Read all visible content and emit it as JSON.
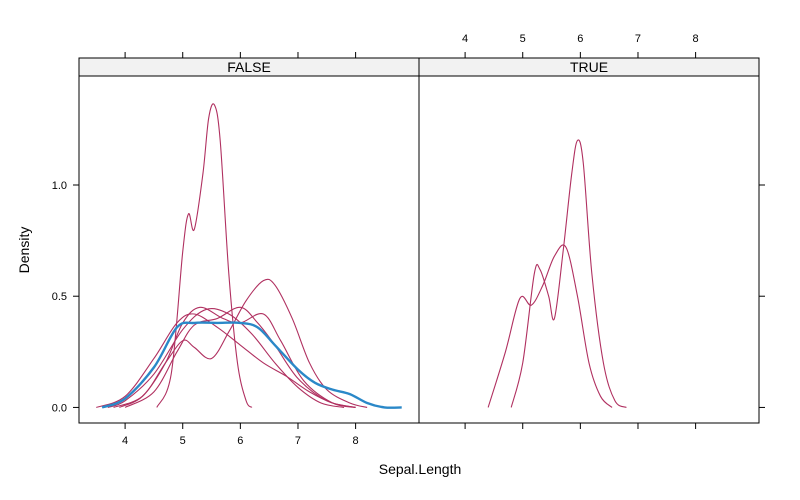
{
  "chart_data": {
    "type": "line",
    "xlabel": "Sepal.Length",
    "ylabel": "Density",
    "xlim": [
      3.2,
      9.1
    ],
    "ylim": [
      -0.07,
      1.49
    ],
    "x_ticks": [
      4,
      5,
      6,
      7,
      8
    ],
    "y_ticks": [
      0.0,
      0.5,
      1.0
    ],
    "y_tick_labels": [
      "0.0",
      "0.5",
      "1.0"
    ],
    "colors": {
      "maroon": "#b03060",
      "blue": "#2a88c8"
    },
    "panels": [
      {
        "strip": "FALSE",
        "series": [
          {
            "color": "maroon",
            "peaks": [
              [
                4.5,
                0.05
              ],
              [
                5.05,
                0.85
              ],
              [
                5.55,
                1.36
              ],
              [
                5.2,
                0.78
              ]
            ],
            "points": [
              [
                4.55,
                0.0
              ],
              [
                4.8,
                0.15
              ],
              [
                5.0,
                0.7
              ],
              [
                5.1,
                0.87
              ],
              [
                5.2,
                0.8
              ],
              [
                5.35,
                1.05
              ],
              [
                5.45,
                1.3
              ],
              [
                5.55,
                1.36
              ],
              [
                5.65,
                1.2
              ],
              [
                5.8,
                0.6
              ],
              [
                5.95,
                0.2
              ],
              [
                6.1,
                0.03
              ],
              [
                6.2,
                0.0
              ]
            ]
          },
          {
            "color": "maroon",
            "points": [
              [
                3.7,
                0.0
              ],
              [
                4.0,
                0.03
              ],
              [
                4.5,
                0.15
              ],
              [
                5.0,
                0.35
              ],
              [
                5.4,
                0.44
              ],
              [
                5.8,
                0.42
              ],
              [
                6.2,
                0.33
              ],
              [
                6.6,
                0.2
              ],
              [
                7.0,
                0.09
              ],
              [
                7.4,
                0.02
              ],
              [
                7.8,
                0.0
              ]
            ]
          },
          {
            "color": "maroon",
            "points": [
              [
                3.5,
                0.0
              ],
              [
                4.0,
                0.05
              ],
              [
                4.5,
                0.22
              ],
              [
                4.9,
                0.38
              ],
              [
                5.2,
                0.42
              ],
              [
                5.6,
                0.36
              ],
              [
                6.0,
                0.28
              ],
              [
                6.4,
                0.2
              ],
              [
                6.8,
                0.14
              ],
              [
                7.2,
                0.07
              ],
              [
                7.6,
                0.02
              ],
              [
                8.0,
                0.0
              ]
            ]
          },
          {
            "color": "maroon",
            "points": [
              [
                3.9,
                0.0
              ],
              [
                4.3,
                0.05
              ],
              [
                4.7,
                0.2
              ],
              [
                5.0,
                0.38
              ],
              [
                5.3,
                0.45
              ],
              [
                5.7,
                0.4
              ],
              [
                6.0,
                0.38
              ],
              [
                6.4,
                0.42
              ],
              [
                6.7,
                0.3
              ],
              [
                7.1,
                0.12
              ],
              [
                7.6,
                0.02
              ],
              [
                8.0,
                0.0
              ]
            ]
          },
          {
            "color": "maroon",
            "points": [
              [
                3.8,
                0.0
              ],
              [
                4.3,
                0.05
              ],
              [
                4.7,
                0.2
              ],
              [
                5.0,
                0.3
              ],
              [
                5.2,
                0.27
              ],
              [
                5.5,
                0.22
              ],
              [
                5.8,
                0.34
              ],
              [
                6.1,
                0.48
              ],
              [
                6.4,
                0.57
              ],
              [
                6.6,
                0.55
              ],
              [
                6.9,
                0.4
              ],
              [
                7.2,
                0.2
              ],
              [
                7.5,
                0.08
              ],
              [
                7.9,
                0.02
              ],
              [
                8.2,
                0.0
              ]
            ]
          },
          {
            "color": "maroon",
            "points": [
              [
                4.0,
                0.0
              ],
              [
                4.5,
                0.07
              ],
              [
                4.9,
                0.25
              ],
              [
                5.2,
                0.37
              ],
              [
                5.6,
                0.4
              ],
              [
                6.0,
                0.45
              ],
              [
                6.3,
                0.38
              ],
              [
                6.6,
                0.28
              ],
              [
                7.0,
                0.13
              ],
              [
                7.5,
                0.03
              ],
              [
                8.0,
                0.0
              ]
            ]
          },
          {
            "color": "blue",
            "points": [
              [
                3.6,
                0.0
              ],
              [
                4.0,
                0.04
              ],
              [
                4.5,
                0.18
              ],
              [
                4.9,
                0.36
              ],
              [
                5.2,
                0.38
              ],
              [
                5.6,
                0.38
              ],
              [
                6.0,
                0.38
              ],
              [
                6.3,
                0.36
              ],
              [
                6.6,
                0.28
              ],
              [
                7.0,
                0.17
              ],
              [
                7.3,
                0.11
              ],
              [
                7.6,
                0.08
              ],
              [
                7.9,
                0.06
              ],
              [
                8.2,
                0.02
              ],
              [
                8.5,
                0.0
              ],
              [
                8.8,
                0.0
              ]
            ]
          }
        ]
      },
      {
        "strip": "TRUE",
        "series": [
          {
            "color": "maroon",
            "points": [
              [
                4.4,
                0.0
              ],
              [
                4.7,
                0.25
              ],
              [
                4.95,
                0.49
              ],
              [
                5.15,
                0.46
              ],
              [
                5.35,
                0.55
              ],
              [
                5.55,
                0.68
              ],
              [
                5.75,
                0.72
              ],
              [
                5.95,
                0.5
              ],
              [
                6.15,
                0.2
              ],
              [
                6.35,
                0.05
              ],
              [
                6.55,
                0.0
              ]
            ]
          },
          {
            "color": "maroon",
            "points": [
              [
                4.8,
                0.0
              ],
              [
                5.0,
                0.2
              ],
              [
                5.2,
                0.6
              ],
              [
                5.3,
                0.62
              ],
              [
                5.45,
                0.5
              ],
              [
                5.55,
                0.4
              ],
              [
                5.7,
                0.7
              ],
              [
                5.85,
                1.05
              ],
              [
                5.95,
                1.2
              ],
              [
                6.05,
                1.1
              ],
              [
                6.2,
                0.6
              ],
              [
                6.4,
                0.2
              ],
              [
                6.6,
                0.03
              ],
              [
                6.8,
                0.0
              ]
            ]
          }
        ]
      }
    ]
  }
}
